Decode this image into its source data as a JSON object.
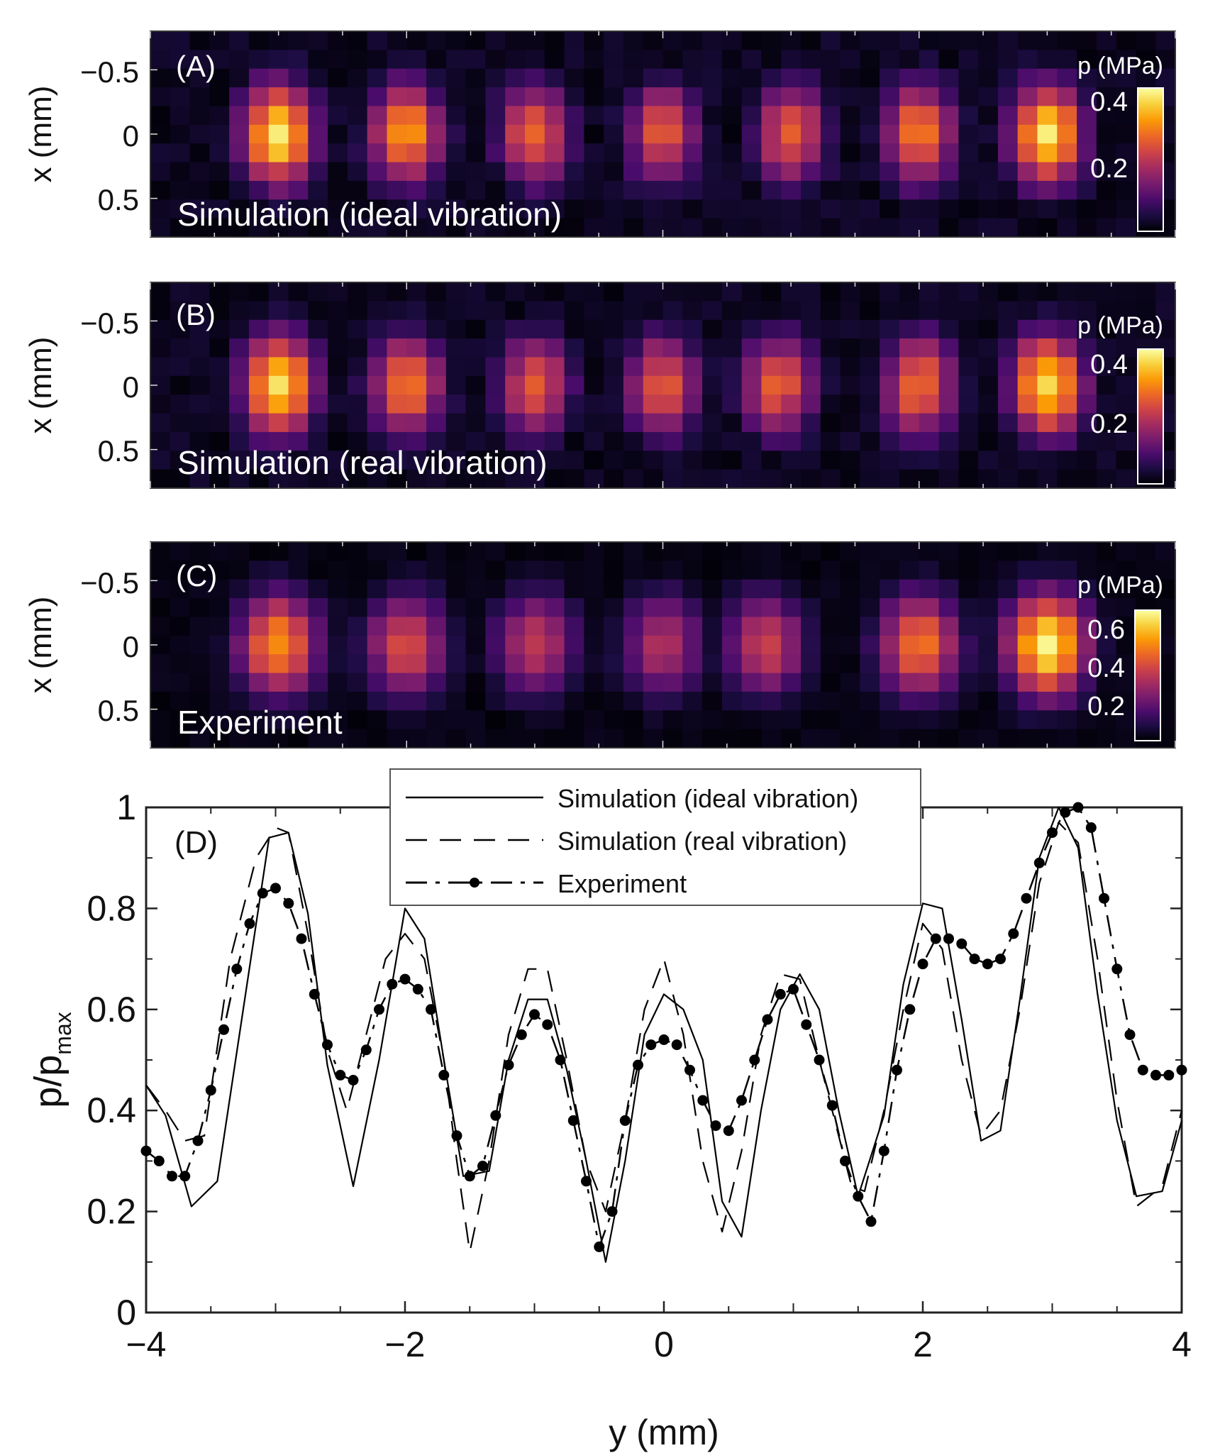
{
  "figure": {
    "colormap": [
      "#000004",
      "#1b0c41",
      "#4a0c6b",
      "#781c6d",
      "#a52c60",
      "#cf4446",
      "#ed6925",
      "#fb9b06",
      "#f7d13d",
      "#fcffa4"
    ]
  },
  "chart_data": [
    {
      "type": "heatmap",
      "panel_label": "(A)",
      "annotation": "Simulation (ideal vibration)",
      "ylabel": "x (mm)",
      "yticks": [
        "−0.5",
        "0",
        "0.5"
      ],
      "xlim": [
        -4,
        4
      ],
      "ylim": [
        -0.8,
        0.8
      ],
      "colorbar": {
        "title": "p (MPa)",
        "ticks": [
          "0.4",
          "0.2"
        ],
        "range": [
          0.05,
          0.44
        ]
      },
      "peak_y_mm": [
        -3.0,
        -2.0,
        -1.0,
        0.0,
        1.0,
        2.0,
        3.0
      ],
      "peak_values_mpa": [
        0.42,
        0.35,
        0.31,
        0.29,
        0.3,
        0.33,
        0.41
      ]
    },
    {
      "type": "heatmap",
      "panel_label": "(B)",
      "annotation": "Simulation (real vibration)",
      "ylabel": "x (mm)",
      "yticks": [
        "−0.5",
        "0",
        "0.5"
      ],
      "xlim": [
        -4,
        4
      ],
      "ylim": [
        -0.8,
        0.8
      ],
      "colorbar": {
        "title": "p (MPa)",
        "ticks": [
          "0.4",
          "0.2"
        ],
        "range": [
          0.05,
          0.44
        ]
      },
      "peak_y_mm": [
        -3.0,
        -2.0,
        -1.0,
        0.0,
        0.9,
        2.0,
        3.0
      ],
      "peak_values_mpa": [
        0.42,
        0.33,
        0.29,
        0.3,
        0.3,
        0.32,
        0.41
      ]
    },
    {
      "type": "heatmap",
      "panel_label": "(C)",
      "annotation": "Experiment",
      "ylabel": "x (mm)",
      "yticks": [
        "−0.5",
        "0",
        "0.5"
      ],
      "xlim": [
        -4,
        4
      ],
      "ylim": [
        -0.8,
        0.8
      ],
      "colorbar": {
        "title": "p (MPa)",
        "ticks": [
          "0.6",
          "0.4",
          "0.2"
        ],
        "range": [
          0.05,
          0.72
        ]
      },
      "peak_y_mm": [
        -3.0,
        -2.0,
        -1.0,
        0.0,
        0.8,
        2.0,
        3.0
      ],
      "peak_values_mpa": [
        0.56,
        0.45,
        0.4,
        0.37,
        0.42,
        0.52,
        0.7
      ]
    },
    {
      "type": "line",
      "panel_label": "(D)",
      "xlabel": "y (mm)",
      "ylabel": "p/p",
      "ylabel_sub": "max",
      "xlim": [
        -4,
        4
      ],
      "ylim": [
        0,
        1
      ],
      "xticks": [
        {
          "v": -4,
          "t": "−4"
        },
        {
          "v": -2,
          "t": "−2"
        },
        {
          "v": 0,
          "t": "0"
        },
        {
          "v": 2,
          "t": "2"
        },
        {
          "v": 4,
          "t": "4"
        }
      ],
      "yticks": [
        {
          "v": 0,
          "t": "0"
        },
        {
          "v": 0.2,
          "t": "0.2"
        },
        {
          "v": 0.4,
          "t": "0.4"
        },
        {
          "v": 0.6,
          "t": "0.6"
        },
        {
          "v": 0.8,
          "t": "0.8"
        },
        {
          "v": 1,
          "t": "1"
        }
      ],
      "legend": {
        "position": "top-center"
      },
      "series": [
        {
          "name": "Simulation (ideal vibration)",
          "style": "solid",
          "x": [
            -4.0,
            -3.85,
            -3.65,
            -3.45,
            -3.25,
            -3.05,
            -2.9,
            -2.75,
            -2.6,
            -2.4,
            -2.2,
            -2.0,
            -1.85,
            -1.7,
            -1.55,
            -1.35,
            -1.2,
            -1.05,
            -0.9,
            -0.75,
            -0.6,
            -0.45,
            -0.3,
            -0.15,
            0.0,
            0.15,
            0.3,
            0.45,
            0.6,
            0.75,
            0.9,
            1.05,
            1.2,
            1.35,
            1.5,
            1.7,
            1.85,
            2.0,
            2.15,
            2.3,
            2.45,
            2.6,
            2.75,
            2.9,
            3.05,
            3.2,
            3.35,
            3.5,
            3.65,
            3.85,
            4.0
          ],
          "y": [
            0.45,
            0.39,
            0.21,
            0.26,
            0.6,
            0.94,
            0.95,
            0.79,
            0.49,
            0.25,
            0.5,
            0.8,
            0.74,
            0.5,
            0.27,
            0.28,
            0.5,
            0.62,
            0.62,
            0.48,
            0.3,
            0.1,
            0.3,
            0.55,
            0.63,
            0.6,
            0.5,
            0.22,
            0.15,
            0.4,
            0.6,
            0.67,
            0.6,
            0.4,
            0.23,
            0.39,
            0.65,
            0.81,
            0.8,
            0.58,
            0.34,
            0.36,
            0.62,
            0.9,
            1.0,
            0.92,
            0.63,
            0.38,
            0.23,
            0.24,
            0.38
          ]
        },
        {
          "name": "Simulation (real vibration)",
          "style": "dashed",
          "x": [
            -4.0,
            -3.85,
            -3.7,
            -3.55,
            -3.35,
            -3.15,
            -3.0,
            -2.9,
            -2.75,
            -2.6,
            -2.45,
            -2.3,
            -2.15,
            -2.0,
            -1.85,
            -1.7,
            -1.6,
            -1.5,
            -1.35,
            -1.2,
            -1.05,
            -0.9,
            -0.75,
            -0.6,
            -0.45,
            -0.3,
            -0.15,
            0.0,
            0.15,
            0.3,
            0.45,
            0.6,
            0.75,
            0.9,
            1.05,
            1.2,
            1.35,
            1.45,
            1.55,
            1.7,
            1.85,
            2.0,
            2.15,
            2.3,
            2.45,
            2.6,
            2.75,
            2.9,
            3.05,
            3.2,
            3.35,
            3.5,
            3.65,
            3.85,
            4.0
          ],
          "y": [
            0.45,
            0.4,
            0.34,
            0.35,
            0.7,
            0.9,
            0.96,
            0.95,
            0.75,
            0.52,
            0.4,
            0.55,
            0.7,
            0.75,
            0.7,
            0.5,
            0.3,
            0.12,
            0.3,
            0.55,
            0.68,
            0.68,
            0.5,
            0.3,
            0.2,
            0.38,
            0.6,
            0.7,
            0.55,
            0.3,
            0.16,
            0.32,
            0.55,
            0.67,
            0.66,
            0.5,
            0.35,
            0.25,
            0.24,
            0.4,
            0.6,
            0.77,
            0.72,
            0.5,
            0.35,
            0.4,
            0.6,
            0.85,
            0.97,
            0.93,
            0.7,
            0.42,
            0.21,
            0.25,
            0.4
          ]
        },
        {
          "name": "Experiment",
          "style": "dash-dot-marker",
          "x": [
            -4.0,
            -3.9,
            -3.8,
            -3.7,
            -3.6,
            -3.5,
            -3.4,
            -3.3,
            -3.2,
            -3.1,
            -3.0,
            -2.9,
            -2.8,
            -2.7,
            -2.6,
            -2.5,
            -2.4,
            -2.3,
            -2.2,
            -2.1,
            -2.0,
            -1.9,
            -1.8,
            -1.7,
            -1.6,
            -1.5,
            -1.4,
            -1.3,
            -1.2,
            -1.1,
            -1.0,
            -0.9,
            -0.8,
            -0.7,
            -0.6,
            -0.5,
            -0.4,
            -0.3,
            -0.2,
            -0.1,
            0.0,
            0.1,
            0.2,
            0.3,
            0.4,
            0.5,
            0.6,
            0.7,
            0.8,
            0.9,
            1.0,
            1.1,
            1.2,
            1.3,
            1.4,
            1.5,
            1.6,
            1.7,
            1.8,
            1.9,
            2.0,
            2.1,
            2.2,
            2.3,
            2.4,
            2.5,
            2.6,
            2.7,
            2.8,
            2.9,
            3.0,
            3.1,
            3.2,
            3.3,
            3.4,
            3.5,
            3.6,
            3.7,
            3.8,
            3.9,
            4.0
          ],
          "y": [
            0.32,
            0.3,
            0.27,
            0.27,
            0.34,
            0.44,
            0.56,
            0.68,
            0.77,
            0.83,
            0.84,
            0.81,
            0.74,
            0.63,
            0.53,
            0.47,
            0.46,
            0.52,
            0.6,
            0.65,
            0.66,
            0.64,
            0.6,
            0.47,
            0.35,
            0.27,
            0.29,
            0.39,
            0.49,
            0.55,
            0.59,
            0.57,
            0.5,
            0.38,
            0.26,
            0.13,
            0.2,
            0.38,
            0.49,
            0.53,
            0.54,
            0.53,
            0.48,
            0.42,
            0.37,
            0.36,
            0.42,
            0.5,
            0.58,
            0.63,
            0.64,
            0.57,
            0.5,
            0.41,
            0.3,
            0.23,
            0.18,
            0.32,
            0.48,
            0.6,
            0.69,
            0.74,
            0.74,
            0.73,
            0.7,
            0.69,
            0.7,
            0.75,
            0.82,
            0.89,
            0.95,
            0.99,
            1.0,
            0.96,
            0.82,
            0.68,
            0.55,
            0.48,
            0.47,
            0.47,
            0.48
          ]
        }
      ]
    }
  ]
}
